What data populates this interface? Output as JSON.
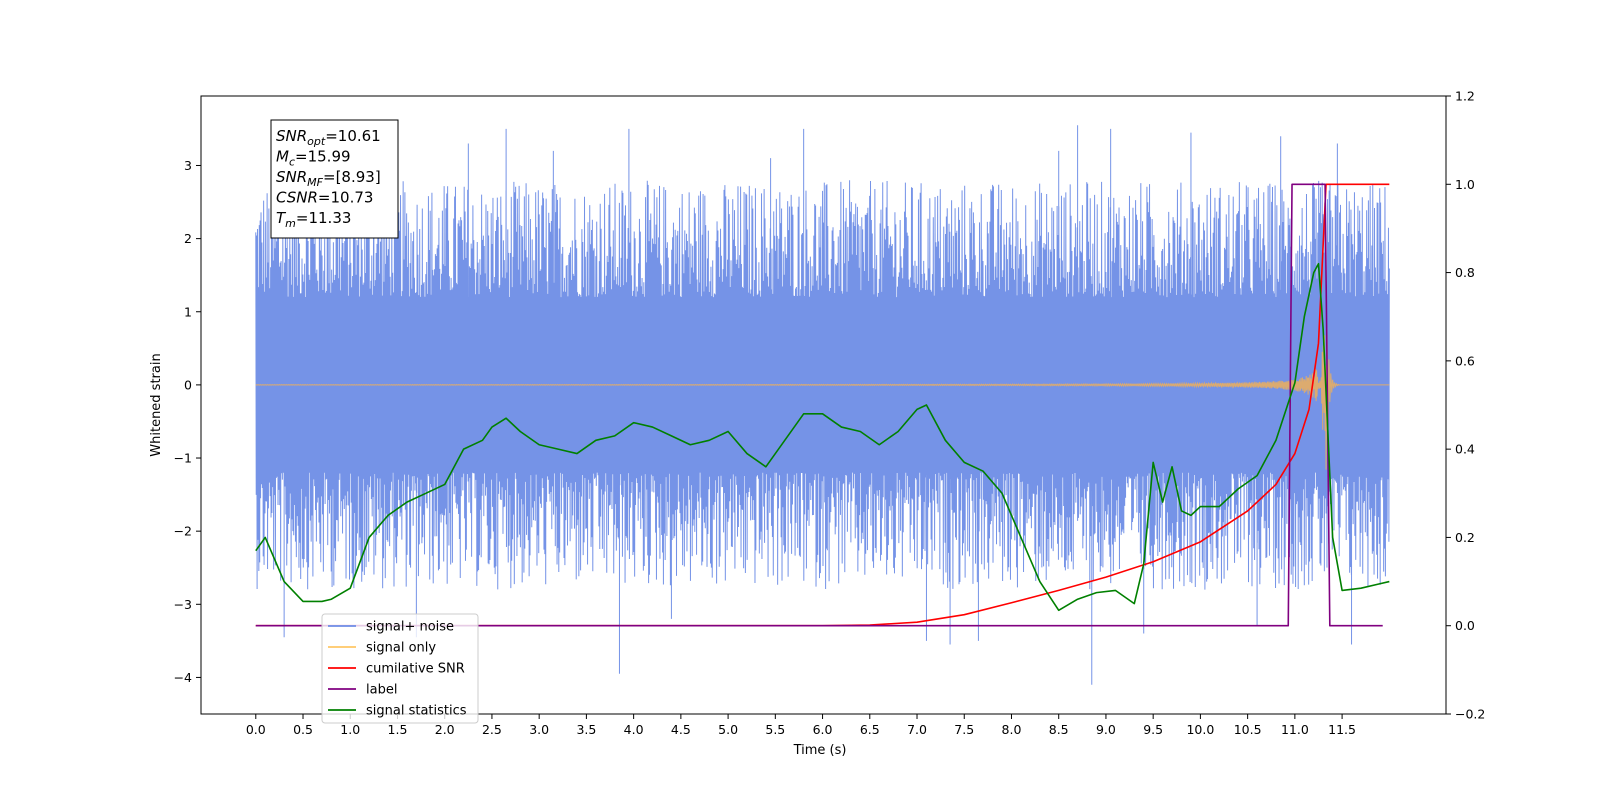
{
  "chart_data": {
    "type": "line",
    "title": "",
    "xlabel": "Time (s)",
    "ylabel": "Whitened strain",
    "xlim": [
      -0.58,
      12.6
    ],
    "ylim_left": [
      -4.5,
      3.95
    ],
    "ylim_right": [
      -0.2,
      1.2
    ],
    "x_ticks": [
      0.0,
      0.5,
      1.0,
      1.5,
      2.0,
      2.5,
      3.0,
      3.5,
      4.0,
      4.5,
      5.0,
      5.5,
      6.0,
      6.5,
      7.0,
      7.5,
      8.0,
      8.5,
      9.0,
      9.5,
      10.0,
      10.5,
      11.0,
      11.5
    ],
    "x_tick_labels": [
      "0.0",
      "0.5",
      "1.0",
      "1.5",
      "2.0",
      "2.5",
      "3.0",
      "3.5",
      "4.0",
      "4.5",
      "5.0",
      "5.5",
      "6.0",
      "6.5",
      "7.0",
      "7.5",
      "8.0",
      "8.5",
      "9.0",
      "9.5",
      "10.0",
      "10.5",
      "11.0",
      "11.5"
    ],
    "y_left_ticks": [
      -4,
      -3,
      -2,
      -1,
      0,
      1,
      2,
      3
    ],
    "y_left_tick_labels": [
      "−4",
      "−3",
      "−2",
      "−1",
      "0",
      "1",
      "2",
      "3"
    ],
    "y_right_ticks": [
      -0.2,
      0.0,
      0.2,
      0.4,
      0.6,
      0.8,
      1.0,
      1.2
    ],
    "y_right_tick_labels": [
      "−0.2",
      "0.0",
      "0.2",
      "0.4",
      "0.6",
      "0.8",
      "1.0",
      "1.2"
    ],
    "grid": false,
    "legend_position": "lower-left",
    "annotation": {
      "lines": [
        {
          "sym": "SNR",
          "sub": "opt",
          "val": "=10.61"
        },
        {
          "sym": "M",
          "sub": "c",
          "val": "=15.99"
        },
        {
          "sym": "SNR",
          "sub": "MF",
          "val": "=[8.93]"
        },
        {
          "sym": "CSNR",
          "sub": "",
          "val": "=10.73"
        },
        {
          "sym": "T",
          "sub": "m",
          "val": "=11.33"
        }
      ]
    },
    "series": [
      {
        "name": "signal+ noise",
        "axis": "left",
        "color": "#6e8de6",
        "style": "noise",
        "x_range": [
          0.0,
          12.0
        ],
        "typical_abs_range": [
          1.2,
          2.8
        ],
        "extremes": [
          {
            "x": 0.3,
            "y": -3.45
          },
          {
            "x": 0.85,
            "y": 3.3
          },
          {
            "x": 1.25,
            "y": 3.3
          },
          {
            "x": 1.7,
            "y": -3.45
          },
          {
            "x": 2.25,
            "y": 3.3
          },
          {
            "x": 2.65,
            "y": 3.5
          },
          {
            "x": 3.15,
            "y": 3.2
          },
          {
            "x": 3.85,
            "y": -3.95
          },
          {
            "x": 3.95,
            "y": 3.5
          },
          {
            "x": 4.4,
            "y": -3.2
          },
          {
            "x": 5.45,
            "y": 3.1
          },
          {
            "x": 5.8,
            "y": 3.5
          },
          {
            "x": 7.1,
            "y": -3.5
          },
          {
            "x": 7.35,
            "y": -3.55
          },
          {
            "x": 7.65,
            "y": -3.5
          },
          {
            "x": 8.5,
            "y": 3.2
          },
          {
            "x": 8.7,
            "y": 3.55
          },
          {
            "x": 8.85,
            "y": -4.1
          },
          {
            "x": 9.05,
            "y": 3.5
          },
          {
            "x": 9.4,
            "y": -3.4
          },
          {
            "x": 9.9,
            "y": 3.45
          },
          {
            "x": 10.6,
            "y": -3.3
          },
          {
            "x": 10.85,
            "y": 3.4
          },
          {
            "x": 11.45,
            "y": 3.3
          },
          {
            "x": 11.6,
            "y": -3.55
          }
        ]
      },
      {
        "name": "signal only",
        "axis": "left",
        "color": "#ffb347",
        "style": "chirp",
        "x_range": [
          0.0,
          12.0
        ],
        "merger_time": 11.33,
        "peak_amplitude": 1.25
      },
      {
        "name": "cumilative SNR",
        "axis": "right",
        "color": "#ff0000",
        "x": [
          0,
          6.0,
          6.5,
          7.0,
          7.5,
          8.0,
          8.5,
          9.0,
          9.5,
          10.0,
          10.5,
          10.8,
          11.0,
          11.15,
          11.25,
          11.33,
          12.0
        ],
        "y": [
          0.0,
          0.0,
          0.0015,
          0.008,
          0.025,
          0.052,
          0.08,
          0.11,
          0.145,
          0.19,
          0.26,
          0.32,
          0.39,
          0.49,
          0.64,
          1.0,
          1.0
        ]
      },
      {
        "name": "label",
        "axis": "right",
        "color": "#800080",
        "x": [
          0.0,
          10.93,
          10.97,
          11.32,
          11.37,
          11.93
        ],
        "y": [
          0.0,
          0.0,
          1.0,
          1.0,
          0.0,
          0.0
        ]
      },
      {
        "name": "signal statistics",
        "axis": "right",
        "color": "#008000",
        "x": [
          0.0,
          0.1,
          0.3,
          0.5,
          0.7,
          0.8,
          1.0,
          1.2,
          1.4,
          1.6,
          1.8,
          2.0,
          2.2,
          2.4,
          2.5,
          2.65,
          2.8,
          3.0,
          3.2,
          3.4,
          3.6,
          3.8,
          4.0,
          4.2,
          4.4,
          4.6,
          4.8,
          5.0,
          5.2,
          5.4,
          5.6,
          5.8,
          6.0,
          6.2,
          6.4,
          6.6,
          6.8,
          7.0,
          7.1,
          7.3,
          7.5,
          7.7,
          7.9,
          8.1,
          8.3,
          8.5,
          8.7,
          8.9,
          9.1,
          9.3,
          9.4,
          9.5,
          9.6,
          9.7,
          9.8,
          9.9,
          10.0,
          10.2,
          10.4,
          10.6,
          10.8,
          11.0,
          11.1,
          11.2,
          11.25,
          11.3,
          11.4,
          11.5,
          11.7,
          11.9,
          12.0
        ],
        "y": [
          0.17,
          0.2,
          0.1,
          0.055,
          0.055,
          0.06,
          0.085,
          0.2,
          0.25,
          0.28,
          0.3,
          0.32,
          0.4,
          0.42,
          0.45,
          0.47,
          0.44,
          0.41,
          0.4,
          0.39,
          0.42,
          0.43,
          0.46,
          0.45,
          0.43,
          0.41,
          0.42,
          0.44,
          0.39,
          0.36,
          0.42,
          0.48,
          0.48,
          0.45,
          0.44,
          0.41,
          0.44,
          0.49,
          0.5,
          0.42,
          0.37,
          0.35,
          0.3,
          0.2,
          0.1,
          0.035,
          0.06,
          0.075,
          0.08,
          0.05,
          0.14,
          0.37,
          0.28,
          0.36,
          0.26,
          0.25,
          0.27,
          0.27,
          0.31,
          0.34,
          0.42,
          0.55,
          0.7,
          0.8,
          0.82,
          0.67,
          0.2,
          0.08,
          0.085,
          0.095,
          0.1
        ]
      }
    ],
    "legend": [
      {
        "name": "signal+ noise",
        "color": "#6e8de6"
      },
      {
        "name": "signal only",
        "color": "#ffc766"
      },
      {
        "name": "cumilative SNR",
        "color": "#ff0000"
      },
      {
        "name": "label",
        "color": "#800080"
      },
      {
        "name": "signal statistics",
        "color": "#008000"
      }
    ]
  }
}
